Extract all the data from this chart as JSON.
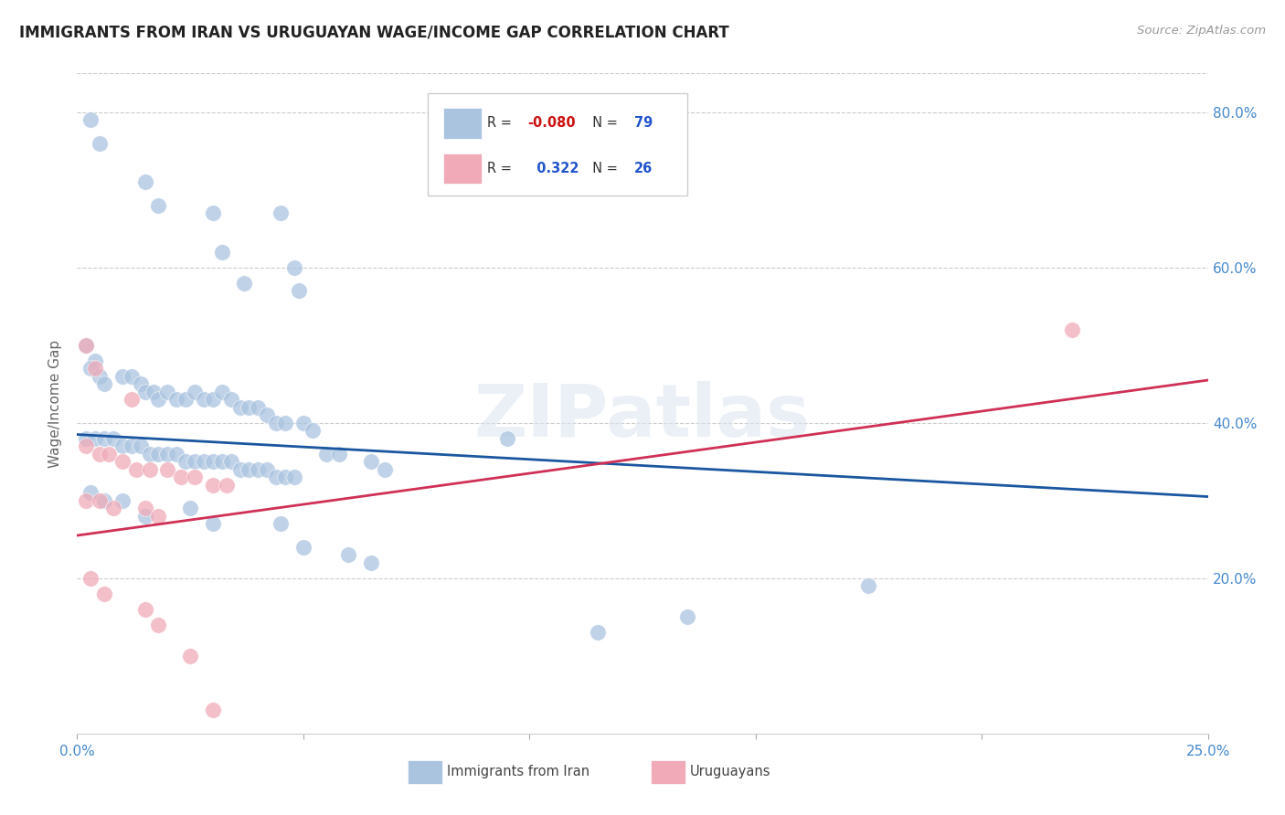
{
  "title": "IMMIGRANTS FROM IRAN VS URUGUAYAN WAGE/INCOME GAP CORRELATION CHART",
  "source": "Source: ZipAtlas.com",
  "ylabel": "Wage/Income Gap",
  "xmin": 0.0,
  "xmax": 25.0,
  "ymin": 0.0,
  "ymax": 0.85,
  "xtick_positions": [
    0.0,
    5.0,
    10.0,
    15.0,
    20.0,
    25.0
  ],
  "xtick_labels": [
    "0.0%",
    "",
    "",
    "",
    "",
    "25.0%"
  ],
  "ytick_positions": [
    0.2,
    0.4,
    0.6,
    0.8
  ],
  "ytick_labels": [
    "20.0%",
    "40.0%",
    "60.0%",
    "80.0%"
  ],
  "blue_r": "-0.080",
  "blue_n": "79",
  "pink_r": "0.322",
  "pink_n": "26",
  "legend_label_blue": "Immigrants from Iran",
  "legend_label_pink": "Uruguayans",
  "blue_color": "#aac4e0",
  "pink_color": "#f0aab8",
  "blue_line_color": "#1a56a0",
  "pink_line_color": "#d03055",
  "watermark": "ZIPatlas",
  "blue_trendline": [
    0.0,
    0.385,
    25.0,
    0.305
  ],
  "pink_trendline": [
    0.0,
    0.255,
    25.0,
    0.455
  ],
  "blue_points": [
    [
      0.3,
      0.79
    ],
    [
      0.5,
      0.76
    ],
    [
      1.5,
      0.71
    ],
    [
      1.8,
      0.68
    ],
    [
      3.0,
      0.67
    ],
    [
      3.2,
      0.62
    ],
    [
      3.7,
      0.58
    ],
    [
      4.5,
      0.67
    ],
    [
      4.8,
      0.6
    ],
    [
      4.9,
      0.57
    ],
    [
      0.2,
      0.5
    ],
    [
      0.4,
      0.48
    ],
    [
      0.3,
      0.47
    ],
    [
      0.5,
      0.46
    ],
    [
      0.6,
      0.45
    ],
    [
      1.0,
      0.46
    ],
    [
      1.2,
      0.46
    ],
    [
      1.4,
      0.45
    ],
    [
      1.5,
      0.44
    ],
    [
      1.7,
      0.44
    ],
    [
      1.8,
      0.43
    ],
    [
      2.0,
      0.44
    ],
    [
      2.2,
      0.43
    ],
    [
      2.4,
      0.43
    ],
    [
      2.6,
      0.44
    ],
    [
      2.8,
      0.43
    ],
    [
      3.0,
      0.43
    ],
    [
      3.2,
      0.44
    ],
    [
      3.4,
      0.43
    ],
    [
      3.6,
      0.42
    ],
    [
      3.8,
      0.42
    ],
    [
      4.0,
      0.42
    ],
    [
      4.2,
      0.41
    ],
    [
      4.4,
      0.4
    ],
    [
      4.6,
      0.4
    ],
    [
      5.0,
      0.4
    ],
    [
      5.2,
      0.39
    ],
    [
      0.2,
      0.38
    ],
    [
      0.4,
      0.38
    ],
    [
      0.6,
      0.38
    ],
    [
      0.8,
      0.38
    ],
    [
      1.0,
      0.37
    ],
    [
      1.2,
      0.37
    ],
    [
      1.4,
      0.37
    ],
    [
      1.6,
      0.36
    ],
    [
      1.8,
      0.36
    ],
    [
      2.0,
      0.36
    ],
    [
      2.2,
      0.36
    ],
    [
      2.4,
      0.35
    ],
    [
      2.6,
      0.35
    ],
    [
      2.8,
      0.35
    ],
    [
      3.0,
      0.35
    ],
    [
      3.2,
      0.35
    ],
    [
      3.4,
      0.35
    ],
    [
      3.6,
      0.34
    ],
    [
      3.8,
      0.34
    ],
    [
      4.0,
      0.34
    ],
    [
      4.2,
      0.34
    ],
    [
      4.4,
      0.33
    ],
    [
      4.6,
      0.33
    ],
    [
      4.8,
      0.33
    ],
    [
      5.5,
      0.36
    ],
    [
      5.8,
      0.36
    ],
    [
      6.5,
      0.35
    ],
    [
      6.8,
      0.34
    ],
    [
      0.3,
      0.31
    ],
    [
      0.6,
      0.3
    ],
    [
      1.0,
      0.3
    ],
    [
      1.5,
      0.28
    ],
    [
      2.5,
      0.29
    ],
    [
      3.0,
      0.27
    ],
    [
      4.5,
      0.27
    ],
    [
      5.0,
      0.24
    ],
    [
      6.0,
      0.23
    ],
    [
      6.5,
      0.22
    ],
    [
      9.5,
      0.38
    ],
    [
      17.5,
      0.19
    ],
    [
      13.5,
      0.15
    ],
    [
      11.5,
      0.13
    ]
  ],
  "pink_points": [
    [
      0.2,
      0.5
    ],
    [
      0.4,
      0.47
    ],
    [
      1.2,
      0.43
    ],
    [
      0.2,
      0.37
    ],
    [
      0.5,
      0.36
    ],
    [
      0.7,
      0.36
    ],
    [
      1.0,
      0.35
    ],
    [
      1.3,
      0.34
    ],
    [
      1.6,
      0.34
    ],
    [
      2.0,
      0.34
    ],
    [
      2.3,
      0.33
    ],
    [
      2.6,
      0.33
    ],
    [
      3.0,
      0.32
    ],
    [
      3.3,
      0.32
    ],
    [
      0.2,
      0.3
    ],
    [
      0.5,
      0.3
    ],
    [
      0.8,
      0.29
    ],
    [
      1.5,
      0.29
    ],
    [
      1.8,
      0.28
    ],
    [
      0.3,
      0.2
    ],
    [
      0.6,
      0.18
    ],
    [
      1.5,
      0.16
    ],
    [
      1.8,
      0.14
    ],
    [
      2.5,
      0.1
    ],
    [
      3.0,
      0.03
    ],
    [
      22.0,
      0.52
    ]
  ]
}
